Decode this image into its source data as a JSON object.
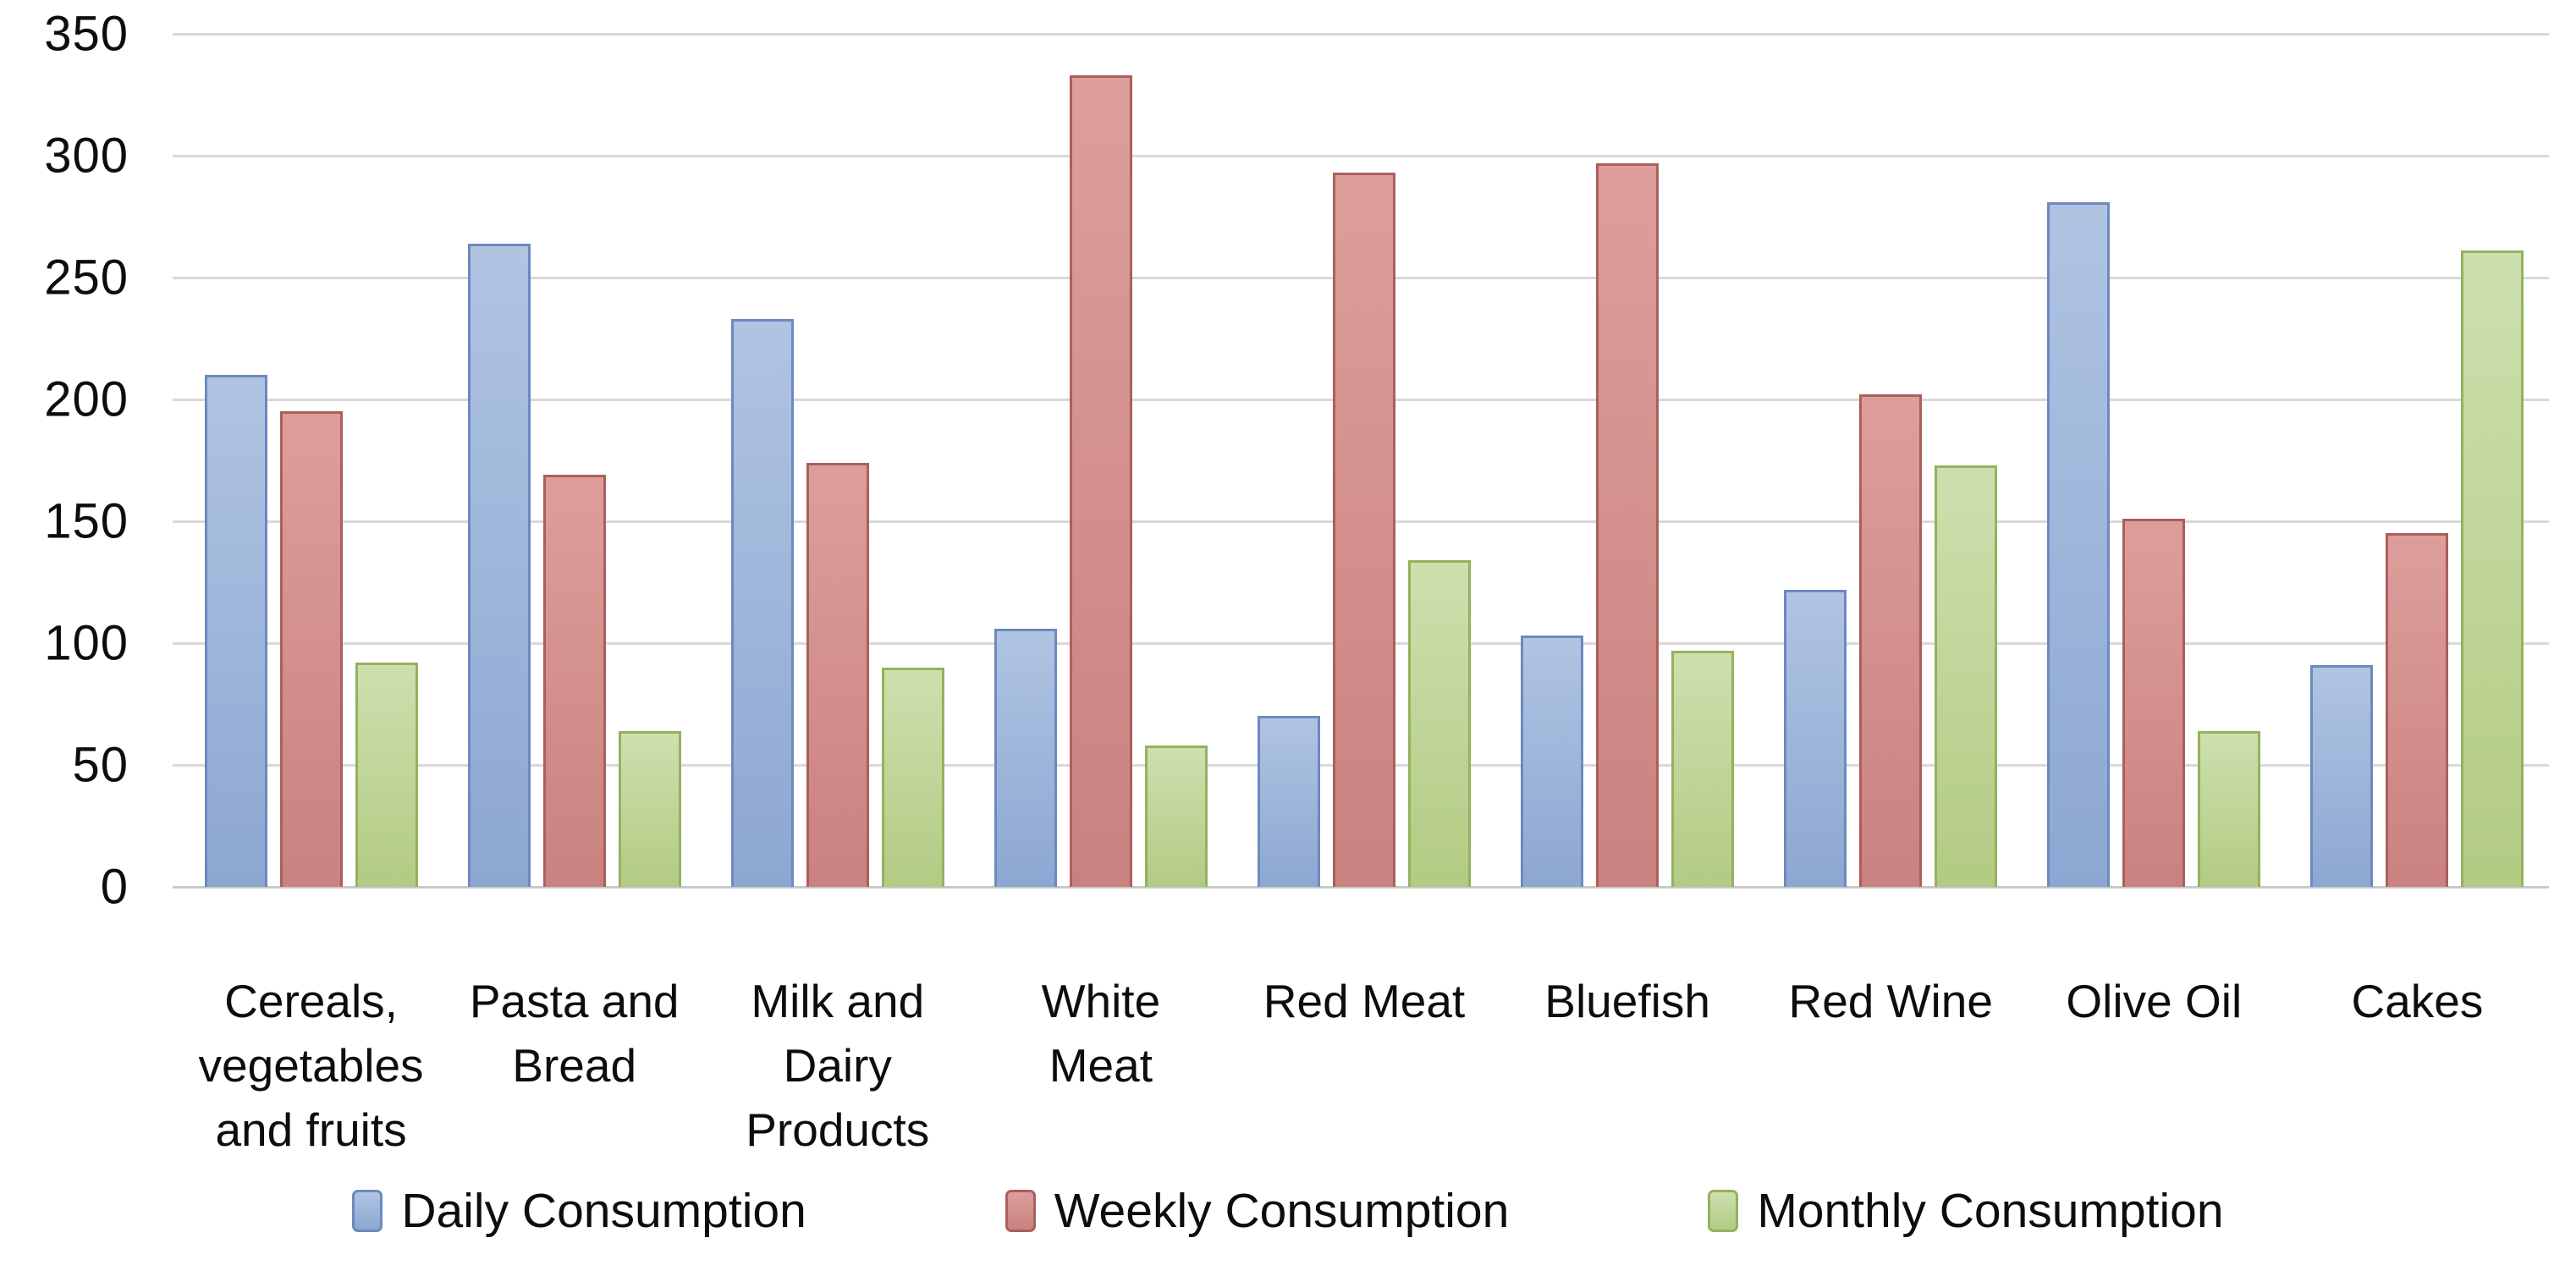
{
  "chart_data": {
    "type": "bar",
    "title": "",
    "categories": [
      "Cereals,\nvegetables\nand fruits",
      "Pasta and\nBread",
      "Milk and\nDairy\nProducts",
      "White\nMeat",
      "Red Meat",
      "Bluefish",
      "Red Wine",
      "Olive Oil",
      "Cakes"
    ],
    "series": [
      {
        "name": "Daily Consumption",
        "values": [
          210,
          264,
          233,
          106,
          70,
          103,
          122,
          281,
          91
        ],
        "fill_light": "#b0c4e2",
        "fill_dark": "#8ca7d2",
        "border": "#6d89be"
      },
      {
        "name": "Weekly Consumption",
        "values": [
          195,
          169,
          174,
          333,
          293,
          297,
          202,
          151,
          145
        ],
        "fill_light": "#dd9e9b",
        "fill_dark": "#c9827f",
        "border": "#ab5f5c"
      },
      {
        "name": "Monthly Consumption",
        "values": [
          92,
          64,
          90,
          58,
          134,
          97,
          173,
          64,
          261
        ],
        "fill_light": "#cedfae",
        "fill_dark": "#b2cb83",
        "border": "#94b25e"
      }
    ],
    "ylim": [
      0,
      350
    ],
    "ytick_step": 50,
    "ytick_labels": [
      "0",
      "50",
      "100",
      "150",
      "200",
      "250",
      "300",
      "350"
    ],
    "grid": true,
    "gridline_color": "#d9d9d9",
    "legend_position": "bottom",
    "background_color": "#ffffff",
    "text_color": "#0d0d0d"
  }
}
